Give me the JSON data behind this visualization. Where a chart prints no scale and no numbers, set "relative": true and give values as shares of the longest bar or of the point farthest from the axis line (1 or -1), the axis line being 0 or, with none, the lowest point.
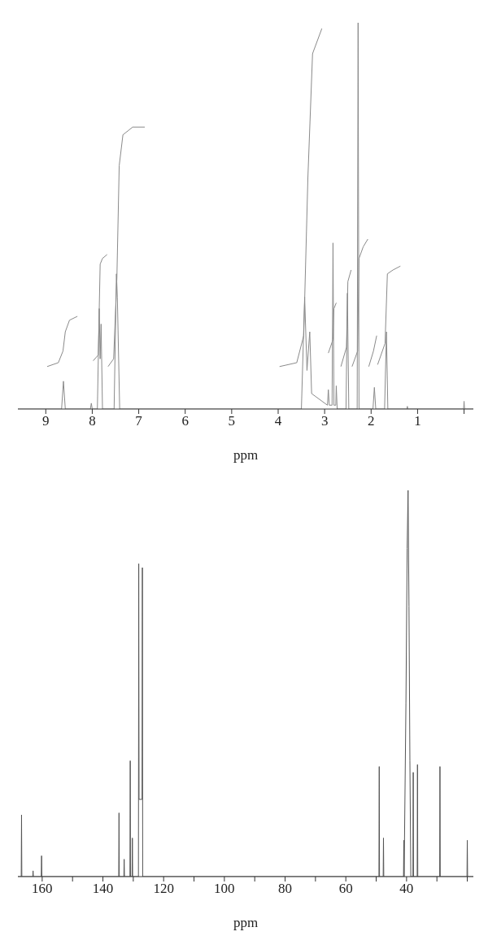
{
  "chart_data": [
    {
      "type": "line",
      "relative": true,
      "xlabel": "ppm",
      "xlim": [
        9.6,
        -0.2
      ],
      "xticks": [
        9,
        8,
        7,
        6,
        5,
        4,
        3,
        2,
        1,
        {
          "value": 0,
          "label": null
        }
      ],
      "series": [
        {
          "color": "#8a8a8a",
          "x": [
            9.6,
            8.66,
            8.62,
            8.58,
            8.04,
            8.02,
            8.0,
            7.89,
            7.85,
            7.83,
            7.81,
            7.78,
            7.53,
            7.48,
            7.46,
            7.41,
            3.5,
            3.43,
            3.38,
            3.32,
            3.28,
            2.94,
            2.92,
            2.9,
            2.84,
            2.82,
            2.8,
            2.76,
            2.75,
            2.73,
            2.54,
            2.51,
            2.48,
            2.3,
            2.28,
            2.26,
            1.96,
            1.93,
            1.9,
            1.71,
            1.67,
            1.64,
            1.23,
            1.22,
            1.21,
            0.01,
            0.0,
            -0.01,
            -0.2
          ],
          "values": [
            0,
            0,
            0.072,
            0,
            0,
            0.015,
            0,
            0,
            0.26,
            0.13,
            0.22,
            0,
            0,
            0.35,
            0.29,
            0,
            0,
            0.29,
            0.1,
            0.2,
            0.04,
            0.01,
            0.05,
            0.01,
            0.01,
            0.43,
            0.01,
            0.01,
            0.06,
            0,
            0,
            0.3,
            0,
            0,
            1,
            0,
            0,
            0.056,
            0,
            0,
            0.2,
            0,
            0,
            0.007,
            0,
            0,
            0.02,
            0,
            0
          ]
        },
        {
          "color": "#8a8a8a",
          "x": [
            8.97,
            8.73,
            8.63,
            8.58,
            8.49,
            8.32,
            8.1,
            7.98,
            7.87,
            7.83,
            7.78,
            7.68,
            7.67,
            7.66,
            7.54,
            7.47,
            7.42,
            7.34,
            7.13,
            6.87,
            5.0,
            3.97,
            3.6,
            3.45,
            3.36,
            3.26,
            3.06,
            3.0,
            2.92,
            2.82,
            2.8,
            2.75,
            2.7,
            2.65,
            2.53,
            2.5,
            2.43,
            2.42,
            2.41,
            2.29,
            2.26,
            2.17,
            2.07,
            2.06,
            2.05,
            1.95,
            1.88,
            1.87,
            1.86,
            1.7,
            1.65,
            1.53,
            1.37
          ],
          "values": [
            0.11,
            0.12,
            0.15,
            0.2,
            0.23,
            0.24,
            null,
            0.125,
            0.14,
            0.375,
            0.39,
            0.4,
            null,
            0.11,
            0.13,
            0.34,
            0.63,
            0.71,
            0.73,
            0.73,
            null,
            0.11,
            0.12,
            0.19,
            0.6,
            0.92,
            0.985,
            null,
            0.145,
            0.18,
            0.26,
            0.275,
            null,
            0.11,
            0.16,
            0.33,
            0.36,
            null,
            0.11,
            0.15,
            0.39,
            0.42,
            0.44,
            null,
            0.11,
            0.15,
            0.19,
            null,
            0.115,
            0.17,
            0.35,
            0.36,
            0.37
          ]
        }
      ]
    },
    {
      "type": "line",
      "relative": true,
      "xlabel": "ppm",
      "xlim": [
        168,
        18
      ],
      "xticks": [
        160,
        {
          "value": 150,
          "label": null
        },
        140,
        {
          "value": 130,
          "label": null
        },
        120,
        {
          "value": 110,
          "label": null
        },
        100,
        {
          "value": 90,
          "label": null
        },
        80,
        {
          "value": 70,
          "label": null
        },
        60,
        {
          "value": 50,
          "label": null
        },
        40,
        {
          "value": 30,
          "label": null
        },
        {
          "value": 20,
          "label": null
        }
      ],
      "series": [
        {
          "color": "#555555",
          "x": [
            168,
            166.9,
            166.8,
            166.7,
            163.1,
            163,
            162.9,
            160.3,
            160.2,
            160.1,
            134.8,
            134.7,
            134.6,
            133.1,
            133,
            132.9,
            131.1,
            131,
            130.9,
            130.4,
            130.3,
            130.2,
            128.3,
            128.2,
            128.1,
            127.1,
            127,
            126.9,
            49.1,
            49,
            48.9,
            47.7,
            47.6,
            47.5,
            41,
            40.9,
            40.8,
            40.2,
            39.8,
            39.5,
            39.2,
            38.9,
            38.6,
            37.9,
            37.8,
            37.7,
            36.5,
            36.4,
            36.3,
            29.1,
            29,
            28.9,
            20.1,
            20,
            19.9,
            18
          ],
          "values": [
            0,
            0,
            0.16,
            0,
            0,
            0.015,
            0,
            0,
            0.054,
            0,
            0,
            0.165,
            0,
            0,
            0.045,
            0,
            0,
            0.3,
            0,
            0,
            0.1,
            0,
            0,
            0.81,
            0.2,
            0.2,
            0.8,
            0,
            0,
            0.285,
            0,
            0,
            0.1,
            0,
            0,
            0.094,
            0,
            0.45,
            0.85,
            1,
            0.7,
            0.3,
            0,
            0,
            0.27,
            0,
            0,
            0.29,
            0,
            0,
            0.285,
            0,
            0,
            0.094,
            0,
            0
          ]
        }
      ]
    }
  ]
}
